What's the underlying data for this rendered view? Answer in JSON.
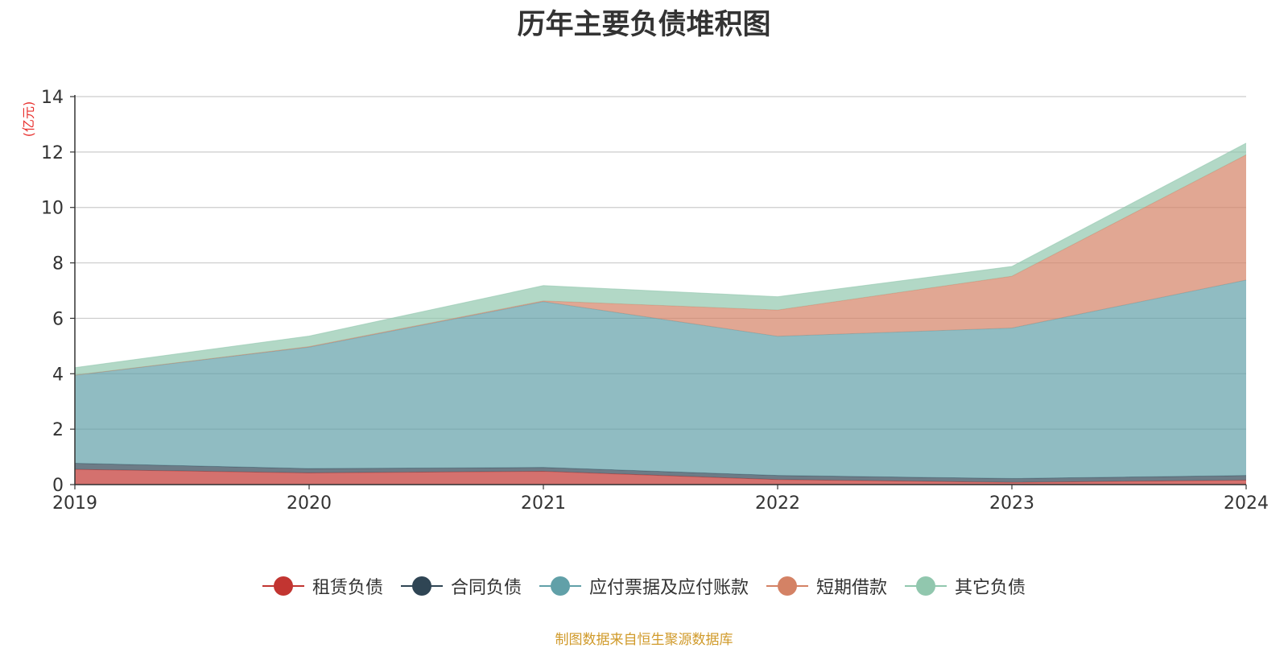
{
  "title": "历年主要负债堆积图",
  "unit_label": "(亿元)",
  "source": "制图数据来自恒生聚源数据库",
  "chart_data": {
    "type": "area",
    "stacked": true,
    "title": "历年主要负债堆积图",
    "ylabel": "(亿元)",
    "x": [
      "2019",
      "2020",
      "2021",
      "2022",
      "2023",
      "2024"
    ],
    "ylim": [
      0,
      14
    ],
    "yticks": [
      0,
      2,
      4,
      6,
      8,
      10,
      12,
      14
    ],
    "grid": true,
    "legend_position": "bottom",
    "series": [
      {
        "name": "租赁负债",
        "color": "#c23531",
        "values": [
          0.55,
          0.42,
          0.48,
          0.18,
          0.08,
          0.16
        ]
      },
      {
        "name": "合同负债",
        "color": "#2f4554",
        "values": [
          0.22,
          0.16,
          0.14,
          0.15,
          0.14,
          0.17
        ]
      },
      {
        "name": "应付票据及应付账款",
        "color": "#61a0a8",
        "values": [
          3.18,
          4.38,
          5.98,
          5.02,
          5.43,
          7.05
        ]
      },
      {
        "name": "短期借款",
        "color": "#d48265",
        "values": [
          0.0,
          0.02,
          0.03,
          0.95,
          1.87,
          4.52
        ]
      },
      {
        "name": "其它负债",
        "color": "#91c7ae",
        "values": [
          0.27,
          0.38,
          0.55,
          0.48,
          0.35,
          0.42
        ]
      }
    ]
  }
}
